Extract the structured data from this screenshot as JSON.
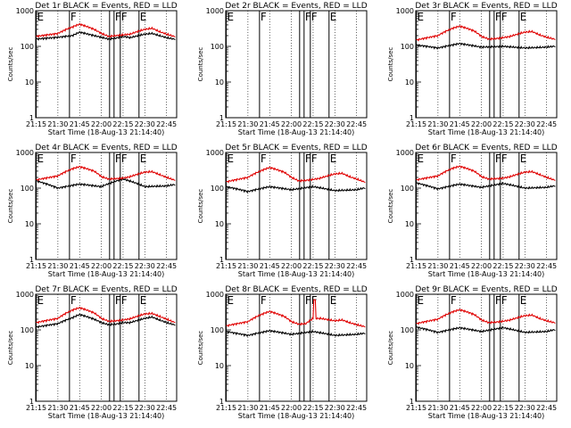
{
  "figure": {
    "ylabel": "Counts/sec",
    "xlabel": "Start Time (18-Aug-13 21:14:40)",
    "x_tick_labels": [
      "21:15",
      "21:30",
      "21:45",
      "22:00",
      "22:15",
      "22:30",
      "22:45"
    ],
    "y_tick_labels": [
      "1",
      "10",
      "100",
      "1000"
    ]
  },
  "chart_data": [
    {
      "type": "line",
      "panel": "1r",
      "title": "Det 1r BLACK = Events, RED = LLD",
      "x_minutes_since_21_14_40": [
        0,
        92
      ],
      "xlim_times": [
        "21:14:40",
        "22:52"
      ],
      "ylim": [
        1,
        1000
      ],
      "yscale": "log",
      "series": [
        {
          "name": "Events",
          "color": "#000000",
          "mode": "day",
          "x_times": [
            "21:15",
            "21:30",
            "21:40",
            "21:45",
            "21:55",
            "22:00",
            "22:05",
            "22:10",
            "22:15",
            "22:20",
            "22:30",
            "22:35",
            "22:40",
            "22:45",
            "22:50"
          ],
          "values": [
            160,
            180,
            200,
            250,
            200,
            180,
            160,
            170,
            190,
            175,
            220,
            230,
            200,
            175,
            160
          ]
        },
        {
          "name": "LLD",
          "color": "#e00000",
          "mode": "day",
          "x_times": [
            "21:15",
            "21:30",
            "21:40",
            "21:45",
            "21:55",
            "22:00",
            "22:05",
            "22:10",
            "22:15",
            "22:20",
            "22:30",
            "22:35",
            "22:40",
            "22:45",
            "22:50"
          ],
          "values": [
            190,
            230,
            350,
            420,
            300,
            230,
            190,
            200,
            210,
            220,
            300,
            320,
            260,
            220,
            190
          ]
        }
      ],
      "event_markers": [
        {
          "label": "E",
          "time": "21:15"
        },
        {
          "label": "F",
          "time": "21:38"
        },
        {
          "label": "FF",
          "time": "22:10"
        },
        {
          "label": "E",
          "time": "22:26"
        }
      ]
    },
    {
      "type": "line",
      "panel": "2r",
      "title": "Det 2r BLACK = Events, RED = LLD",
      "xlim_times": [
        "21:14:40",
        "22:52"
      ],
      "ylim": [
        1,
        1000
      ],
      "yscale": "log",
      "series": [],
      "event_markers": [
        {
          "label": "E",
          "time": "21:15"
        },
        {
          "label": "F",
          "time": "21:38"
        },
        {
          "label": "FF",
          "time": "22:10"
        },
        {
          "label": "E",
          "time": "22:26"
        }
      ]
    },
    {
      "type": "line",
      "panel": "3r",
      "title": "Det 3r BLACK = Events, RED = LLD",
      "xlim_times": [
        "21:14:40",
        "22:52"
      ],
      "ylim": [
        1,
        1000
      ],
      "yscale": "log",
      "series": [
        {
          "name": "Events",
          "color": "#000000",
          "mode": "night",
          "x_times": [
            "21:15",
            "21:30",
            "21:45",
            "22:00",
            "22:15",
            "22:30",
            "22:45",
            "22:50"
          ],
          "values": [
            110,
            90,
            120,
            95,
            100,
            90,
            95,
            100
          ]
        },
        {
          "name": "LLD",
          "color": "#e00000",
          "mode": "day",
          "x_times": [
            "21:15",
            "21:30",
            "21:40",
            "21:45",
            "21:55",
            "22:00",
            "22:05",
            "22:10",
            "22:15",
            "22:20",
            "22:30",
            "22:35",
            "22:40",
            "22:45",
            "22:50"
          ],
          "values": [
            150,
            200,
            320,
            370,
            270,
            190,
            160,
            165,
            175,
            190,
            250,
            260,
            210,
            180,
            160
          ]
        }
      ],
      "event_markers": [
        {
          "label": "E",
          "time": "21:15"
        },
        {
          "label": "F",
          "time": "21:38"
        },
        {
          "label": "FF",
          "time": "22:10"
        },
        {
          "label": "E",
          "time": "22:26"
        }
      ]
    },
    {
      "type": "line",
      "panel": "4r",
      "title": "Det 4r BLACK = Events, RED = LLD",
      "xlim_times": [
        "21:14:40",
        "22:52"
      ],
      "ylim": [
        1,
        1000
      ],
      "yscale": "log",
      "series": [
        {
          "name": "Events",
          "color": "#000000",
          "mode": "night",
          "x_times": [
            "21:15",
            "21:30",
            "21:45",
            "22:00",
            "22:15",
            "22:30",
            "22:45",
            "22:50"
          ],
          "values": [
            160,
            100,
            130,
            110,
            180,
            110,
            115,
            125
          ]
        },
        {
          "name": "LLD",
          "color": "#e00000",
          "mode": "day",
          "x_times": [
            "21:15",
            "21:30",
            "21:40",
            "21:45",
            "21:55",
            "22:00",
            "22:05",
            "22:10",
            "22:15",
            "22:20",
            "22:30",
            "22:35",
            "22:40",
            "22:45",
            "22:50"
          ],
          "values": [
            170,
            220,
            350,
            400,
            300,
            210,
            180,
            185,
            190,
            210,
            280,
            290,
            240,
            200,
            170
          ]
        }
      ],
      "event_markers": [
        {
          "label": "E",
          "time": "21:15"
        },
        {
          "label": "F",
          "time": "21:38"
        },
        {
          "label": "FF",
          "time": "22:10"
        },
        {
          "label": "E",
          "time": "22:26"
        }
      ]
    },
    {
      "type": "line",
      "panel": "5r",
      "title": "Det 5r BLACK = Events, RED = LLD",
      "xlim_times": [
        "21:14:40",
        "22:52"
      ],
      "ylim": [
        1,
        1000
      ],
      "yscale": "log",
      "series": [
        {
          "name": "Events",
          "color": "#000000",
          "mode": "night",
          "x_times": [
            "21:15",
            "21:30",
            "21:45",
            "22:00",
            "22:15",
            "22:30",
            "22:45",
            "22:50"
          ],
          "values": [
            110,
            80,
            110,
            90,
            110,
            85,
            90,
            100
          ]
        },
        {
          "name": "LLD",
          "color": "#e00000",
          "mode": "day",
          "x_times": [
            "21:15",
            "21:30",
            "21:40",
            "21:45",
            "21:55",
            "22:00",
            "22:05",
            "22:10",
            "22:15",
            "22:20",
            "22:30",
            "22:35",
            "22:40",
            "22:45",
            "22:50"
          ],
          "values": [
            150,
            200,
            320,
            380,
            280,
            200,
            160,
            165,
            175,
            190,
            250,
            260,
            210,
            180,
            150
          ]
        }
      ],
      "event_markers": [
        {
          "label": "E",
          "time": "21:15"
        },
        {
          "label": "F",
          "time": "21:38"
        },
        {
          "label": "FF",
          "time": "22:10"
        },
        {
          "label": "E",
          "time": "22:26"
        }
      ]
    },
    {
      "type": "line",
      "panel": "6r",
      "title": "Det 6r BLACK = Events, RED = LLD",
      "xlim_times": [
        "21:14:40",
        "22:52"
      ],
      "ylim": [
        1,
        1000
      ],
      "yscale": "log",
      "series": [
        {
          "name": "Events",
          "color": "#000000",
          "mode": "night",
          "x_times": [
            "21:15",
            "21:30",
            "21:45",
            "22:00",
            "22:15",
            "22:30",
            "22:45",
            "22:50"
          ],
          "values": [
            140,
            95,
            130,
            105,
            135,
            100,
            105,
            115
          ]
        },
        {
          "name": "LLD",
          "color": "#e00000",
          "mode": "day",
          "x_times": [
            "21:15",
            "21:30",
            "21:40",
            "21:45",
            "21:55",
            "22:00",
            "22:05",
            "22:10",
            "22:15",
            "22:20",
            "22:30",
            "22:35",
            "22:40",
            "22:45",
            "22:50"
          ],
          "values": [
            170,
            220,
            360,
            410,
            300,
            210,
            180,
            185,
            190,
            210,
            280,
            290,
            240,
            200,
            170
          ]
        }
      ],
      "event_markers": [
        {
          "label": "E",
          "time": "21:15"
        },
        {
          "label": "F",
          "time": "21:38"
        },
        {
          "label": "FF",
          "time": "22:10"
        },
        {
          "label": "E",
          "time": "22:26"
        }
      ]
    },
    {
      "type": "line",
      "panel": "7r",
      "title": "Det 7r BLACK = Events, RED = LLD",
      "xlim_times": [
        "21:14:40",
        "22:52"
      ],
      "ylim": [
        1,
        1000
      ],
      "yscale": "log",
      "series": [
        {
          "name": "Events",
          "color": "#000000",
          "mode": "day",
          "x_times": [
            "21:15",
            "21:30",
            "21:40",
            "21:45",
            "21:55",
            "22:00",
            "22:05",
            "22:10",
            "22:15",
            "22:20",
            "22:30",
            "22:35",
            "22:40",
            "22:45",
            "22:50"
          ],
          "values": [
            120,
            150,
            220,
            270,
            200,
            160,
            140,
            145,
            160,
            160,
            210,
            230,
            190,
            160,
            140
          ]
        },
        {
          "name": "LLD",
          "color": "#e00000",
          "mode": "day",
          "x_times": [
            "21:15",
            "21:30",
            "21:40",
            "21:45",
            "21:55",
            "22:00",
            "22:05",
            "22:10",
            "22:15",
            "22:20",
            "22:30",
            "22:35",
            "22:40",
            "22:45",
            "22:50"
          ],
          "values": [
            160,
            210,
            360,
            420,
            300,
            210,
            175,
            180,
            190,
            205,
            280,
            290,
            240,
            200,
            165
          ]
        }
      ],
      "event_markers": [
        {
          "label": "E",
          "time": "21:15"
        },
        {
          "label": "F",
          "time": "21:38"
        },
        {
          "label": "FF",
          "time": "22:10"
        },
        {
          "label": "E",
          "time": "22:26"
        }
      ]
    },
    {
      "type": "line",
      "panel": "8r",
      "title": "Det 8r BLACK = Events, RED = LLD",
      "xlim_times": [
        "21:14:40",
        "22:52"
      ],
      "ylim": [
        1,
        1000
      ],
      "yscale": "log",
      "series": [
        {
          "name": "Events",
          "color": "#000000",
          "mode": "night",
          "x_times": [
            "21:15",
            "21:30",
            "21:45",
            "22:00",
            "22:15",
            "22:30",
            "22:45",
            "22:50"
          ],
          "values": [
            90,
            70,
            95,
            75,
            90,
            70,
            75,
            80
          ]
        },
        {
          "name": "LLD",
          "color": "#e00000",
          "mode": "day",
          "spike": {
            "time": "22:16",
            "value": 700
          },
          "x_times": [
            "21:15",
            "21:30",
            "21:40",
            "21:45",
            "21:55",
            "22:00",
            "22:05",
            "22:10",
            "22:15",
            "22:20",
            "22:30",
            "22:35",
            "22:40",
            "22:45",
            "22:50"
          ],
          "values": [
            130,
            170,
            280,
            330,
            240,
            170,
            145,
            150,
            210,
            210,
            180,
            190,
            160,
            140,
            125
          ]
        }
      ],
      "event_markers": [
        {
          "label": "E",
          "time": "21:15"
        },
        {
          "label": "F",
          "time": "21:38"
        },
        {
          "label": "FF",
          "time": "22:10"
        },
        {
          "label": "E",
          "time": "22:26"
        }
      ]
    },
    {
      "type": "line",
      "panel": "9r",
      "title": "Det 9r BLACK = Events, RED = LLD",
      "xlim_times": [
        "21:14:40",
        "22:52"
      ],
      "ylim": [
        1,
        1000
      ],
      "yscale": "log",
      "series": [
        {
          "name": "Events",
          "color": "#000000",
          "mode": "night",
          "x_times": [
            "21:15",
            "21:30",
            "21:45",
            "22:00",
            "22:15",
            "22:30",
            "22:45",
            "22:50"
          ],
          "values": [
            120,
            85,
            115,
            90,
            115,
            85,
            90,
            100
          ]
        },
        {
          "name": "LLD",
          "color": "#e00000",
          "mode": "day",
          "x_times": [
            "21:15",
            "21:30",
            "21:40",
            "21:45",
            "21:55",
            "22:00",
            "22:05",
            "22:10",
            "22:15",
            "22:20",
            "22:30",
            "22:35",
            "22:40",
            "22:45",
            "22:50"
          ],
          "values": [
            150,
            200,
            320,
            370,
            270,
            190,
            160,
            165,
            175,
            190,
            250,
            260,
            210,
            180,
            160
          ]
        }
      ],
      "event_markers": [
        {
          "label": "E",
          "time": "21:15"
        },
        {
          "label": "F",
          "time": "21:38"
        },
        {
          "label": "FF",
          "time": "22:10"
        },
        {
          "label": "E",
          "time": "22:26"
        }
      ]
    }
  ]
}
